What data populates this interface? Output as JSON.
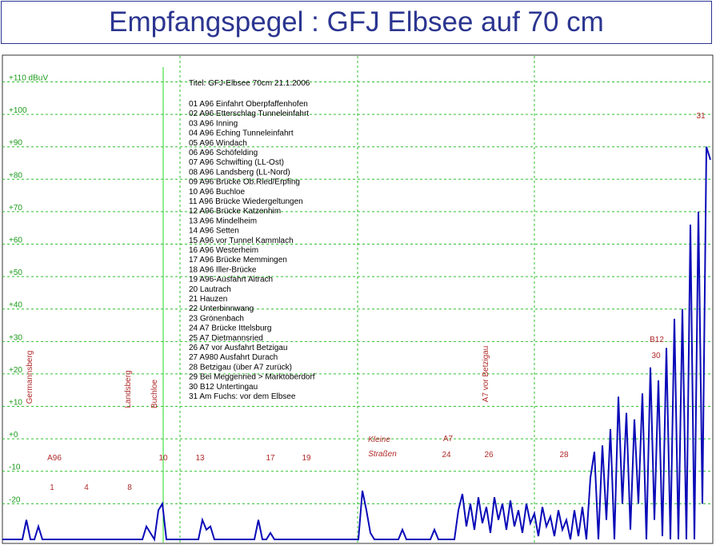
{
  "chart_data": {
    "type": "line",
    "title": "Empfangspegel : GFJ Elbsee auf 70 cm",
    "subtitle": "Titel: GFJ-Elbsee 70cm 21.1.2006",
    "ylim": [
      -31,
      118
    ],
    "yticks": [
      {
        "value": 110,
        "label": "+110 dBuV"
      },
      {
        "value": 100,
        "label": "+100"
      },
      {
        "value": 90,
        "label": "+90"
      },
      {
        "value": 80,
        "label": "+80"
      },
      {
        "value": 70,
        "label": "+70"
      },
      {
        "value": 60,
        "label": "+60"
      },
      {
        "value": 50,
        "label": "+50"
      },
      {
        "value": 40,
        "label": "+40"
      },
      {
        "value": 30,
        "label": "+30"
      },
      {
        "value": 20,
        "label": "+20"
      },
      {
        "value": 10,
        "label": "+10"
      },
      {
        "value": 0,
        "label": "+0"
      },
      -10,
      -20
    ],
    "grid": true,
    "color": "#0a0ab8",
    "values": [
      -31,
      -31,
      -31,
      -31,
      -31,
      -31,
      -25,
      -31,
      -31,
      -27,
      -31,
      -31,
      -31,
      -31,
      -31,
      -31,
      -31,
      -31,
      -31,
      -31,
      -31,
      -31,
      -31,
      -31,
      -31,
      -31,
      -31,
      -31,
      -31,
      -31,
      -31,
      -31,
      -31,
      -31,
      -31,
      -31,
      -27,
      -29,
      -31,
      -22,
      -20,
      -31,
      -31,
      -31,
      -31,
      -31,
      -31,
      -31,
      -31,
      -31,
      -25,
      -28,
      -27,
      -31,
      -31,
      -31,
      -31,
      -31,
      -31,
      -31,
      -31,
      -31,
      -31,
      -31,
      -25,
      -31,
      -31,
      -29,
      -31,
      -31,
      -31,
      -31,
      -31,
      -31,
      -31,
      -31,
      -31,
      -31,
      -31,
      -31,
      -31,
      -31,
      -31,
      -31,
      -31,
      -31,
      -31,
      -31,
      -31,
      -31,
      -16,
      -22,
      -29,
      -31,
      -31,
      -31,
      -31,
      -31,
      -31,
      -31,
      -28,
      -31,
      -31,
      -31,
      -31,
      -31,
      -31,
      -31,
      -28,
      -31,
      -31,
      -31,
      -31,
      -31,
      -22,
      -17,
      -27,
      -20,
      -28,
      -18,
      -26,
      -21,
      -29,
      -18,
      -25,
      -20,
      -28,
      -19,
      -27,
      -22,
      -29,
      -20,
      -26,
      -23,
      -30,
      -21,
      -27,
      -24,
      -30,
      -22,
      -28,
      -25,
      -31,
      -22,
      -30,
      -21,
      -31,
      -12,
      -4,
      -31,
      -2,
      -25,
      3,
      -31,
      13,
      -20,
      8,
      -28,
      6,
      -20,
      14,
      -31,
      22,
      -25,
      18,
      -30,
      28,
      -31,
      37,
      -31,
      40,
      -31,
      66,
      -31,
      70,
      -20,
      90,
      86
    ],
    "legend_text": [
      "01 A96 Einfahrt Oberpfaffenhofen",
      "02 A96 Etterschlag Tunneleinfahrt",
      "03 A96 Inning",
      "04 A96 Eching Tunneleinfahrt",
      "05 A96 Windach",
      "06 A96 Schöfelding",
      "07 A96 Schwifting (LL-Ost)",
      "08 A96 Landsberg (LL-Nord)",
      "09 A96 Brücke Ob.Ried/Erpfing",
      "10 A96 Buchloe",
      "11 A96 Brücke Wiedergeltungen",
      "12 A96 Brücke Katzenhim",
      "13 A96 Mindelheim",
      "14 A96 Setten",
      "15 A96 vor Tunnel Kammlach",
      "16 A96 Westerheim",
      "17 A96 Brücke Memmingen",
      "18 A96 Iller-Brücke",
      "19 A96-Ausfahrt Aitrach",
      "20 Lautrach",
      "21 Hauzen",
      "22 Unterbinnwang",
      "23 Grönenbach",
      "24 A7 Brücke Ittelsburg",
      "25 A7 Dietmannsried",
      "26 A7 vor Ausfahrt Betzigau",
      "27 A980 Ausfahrt Durach",
      "28 Betzigau (über A7 zurück)",
      "29 Bei Meggenried > Marktoberdorf",
      "30 B12 Untertingau",
      "31 Am Fuchs: vor dem Elbsee"
    ],
    "annotations": [
      "Germannsberg",
      "Landsberg",
      "Buchloe",
      "A7 vor Betzigau",
      "A96",
      "1",
      "4",
      "8",
      "10",
      "13",
      "17",
      "19",
      "Kleine",
      "Straßen",
      "A7",
      "24",
      "26",
      "28",
      "B12",
      "30",
      "31"
    ]
  }
}
